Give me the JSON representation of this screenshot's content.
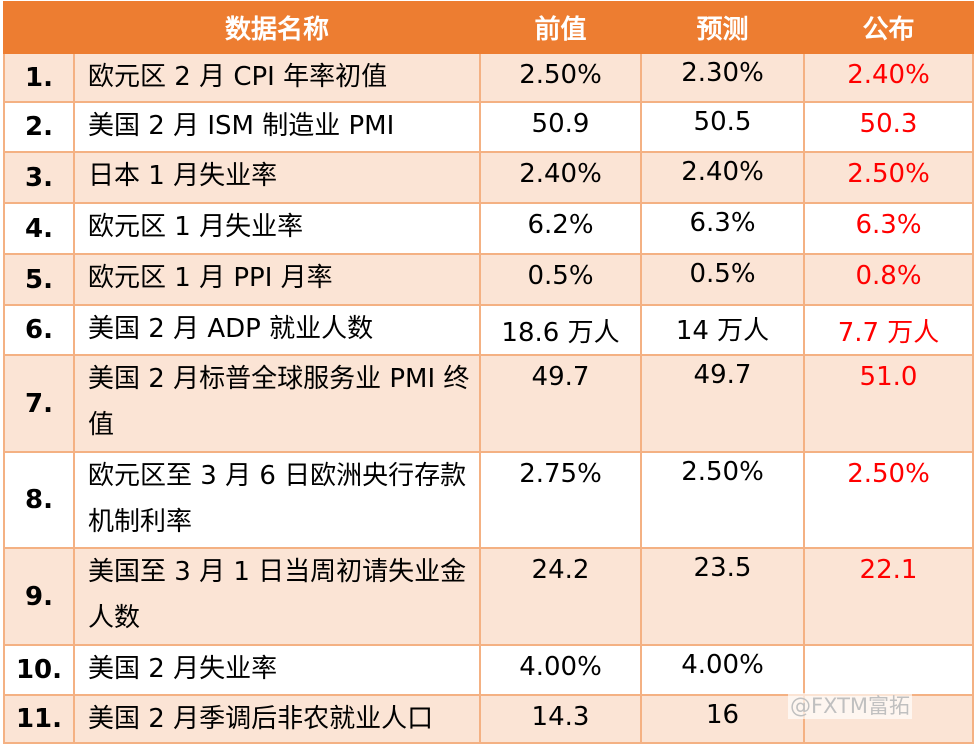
{
  "header": {
    "name": "数据名称",
    "previous": "前值",
    "forecast": "预测",
    "actual": "公布"
  },
  "rows": [
    {
      "no": "1.",
      "name": "欧元区 2 月 CPI 年率初值",
      "previous": "2.50%",
      "forecast": "2.30%",
      "actual": "2.40%"
    },
    {
      "no": "2.",
      "name": "美国 2 月 ISM 制造业 PMI",
      "previous": "50.9",
      "forecast": "50.5",
      "actual": "50.3"
    },
    {
      "no": "3.",
      "name": "日本 1 月失业率",
      "previous": "2.40%",
      "forecast": "2.40%",
      "actual": "2.50%"
    },
    {
      "no": "4.",
      "name": "欧元区 1 月失业率",
      "previous": "6.2%",
      "forecast": "6.3%",
      "actual": "6.3%"
    },
    {
      "no": "5.",
      "name": "欧元区 1 月 PPI 月率",
      "previous": "0.5%",
      "forecast": "0.5%",
      "actual": "0.8%"
    },
    {
      "no": "6.",
      "name": "美国 2 月 ADP 就业人数",
      "previous": "18.6 万人",
      "forecast": "14 万人",
      "actual": "7.7 万人"
    },
    {
      "no": "7.",
      "name": "美国 2 月标普全球服务业 PMI 终值",
      "previous": "49.7",
      "forecast": "49.7",
      "actual": "51.0"
    },
    {
      "no": "8.",
      "name": "欧元区至 3 月 6 日欧洲央行存款机制利率",
      "previous": "2.75%",
      "forecast": "2.50%",
      "actual": "2.50%"
    },
    {
      "no": "9.",
      "name": "美国至 3 月 1 日当周初请失业金人数",
      "previous": "24.2",
      "forecast": "23.5",
      "actual": "22.1"
    },
    {
      "no": "10.",
      "name": "美国 2 月失业率",
      "previous": "4.00%",
      "forecast": "4.00%",
      "actual": ""
    },
    {
      "no": "11.",
      "name": "美国 2 月季调后非农就业人口",
      "previous": "14.3",
      "forecast": "16",
      "actual": ""
    }
  ],
  "watermark": "@FXTM富拓",
  "colors": {
    "header_bg": "#ed7d31",
    "stripe_bg": "#fbe4d5",
    "border": "#f4b183",
    "actual_text": "#ff0000"
  }
}
